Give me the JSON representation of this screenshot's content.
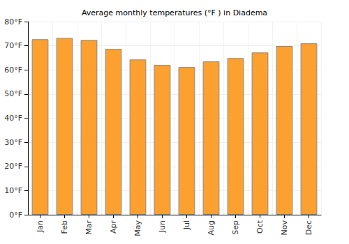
{
  "chart_data": {
    "type": "bar",
    "title": "Average monthly temperatures (°F ) in Diadema",
    "categories": [
      "Jan",
      "Feb",
      "Mar",
      "Apr",
      "May",
      "Jun",
      "Jul",
      "Aug",
      "Sep",
      "Oct",
      "Nov",
      "Dec"
    ],
    "values": [
      72.7,
      73.2,
      72.4,
      68.7,
      64.3,
      62.1,
      61.2,
      63.5,
      64.9,
      67.2,
      69.9,
      71.0
    ],
    "color": "#fca12f",
    "ylim": [
      0,
      80
    ],
    "yticks": [
      {
        "value": 0,
        "label": "0°F"
      },
      {
        "value": 10,
        "label": "10°F"
      },
      {
        "value": 20,
        "label": "20°F"
      },
      {
        "value": 30,
        "label": "30°F"
      },
      {
        "value": 40,
        "label": "40°F"
      },
      {
        "value": 50,
        "label": "50°F"
      },
      {
        "value": 60,
        "label": "60°F"
      },
      {
        "value": 70,
        "label": "70°F"
      },
      {
        "value": 80,
        "label": "80°F"
      }
    ],
    "grid": true
  }
}
